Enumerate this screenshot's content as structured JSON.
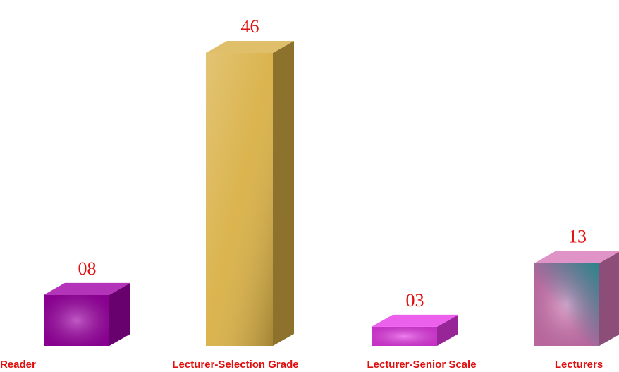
{
  "chart_data": {
    "type": "bar3d",
    "categories": [
      "Reader",
      "Lecturer-Selection Grade",
      "Lecturer-Senior Scale",
      "Lecturers"
    ],
    "values": [
      8,
      46,
      3,
      13
    ],
    "value_labels": [
      "08",
      "46",
      "03",
      "13"
    ],
    "colors": [
      "#a000a8",
      "#d9b045",
      "#e83ae8",
      "#d878b8"
    ]
  }
}
